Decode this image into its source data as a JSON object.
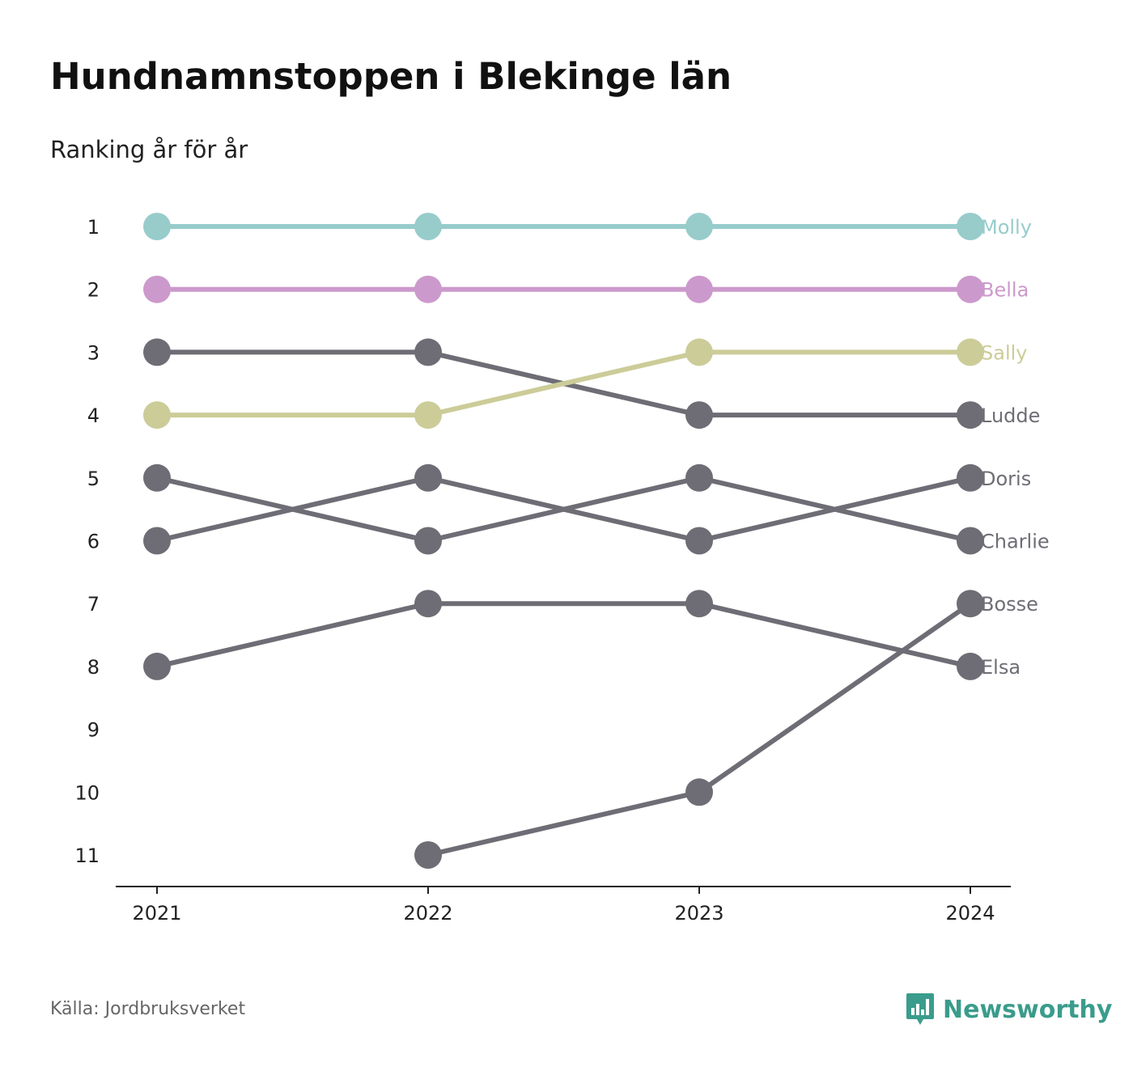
{
  "title": "Hundnamnstoppen i Blekinge län",
  "subtitle": "Ranking år för år",
  "source": "Källa: Jordbruksverket",
  "brand": "Newsworthy",
  "brand_icon": "bar-chart-speech-bubble-icon",
  "colors": {
    "highlight": "#3a9c8c",
    "default_series": "#6e6d75"
  },
  "chart_data": {
    "type": "line",
    "subtype": "bump",
    "x": [
      "2021",
      "2022",
      "2023",
      "2024"
    ],
    "y_ticks": [
      1,
      2,
      3,
      4,
      5,
      6,
      7,
      8,
      9,
      10,
      11
    ],
    "ylim": [
      1,
      11
    ],
    "y_inverted": true,
    "grid": false,
    "legend": "end-labels-right",
    "series": [
      {
        "name": "Molly",
        "values": [
          1,
          1,
          1,
          1
        ],
        "color": "#97cccb"
      },
      {
        "name": "Bella",
        "values": [
          2,
          2,
          2,
          2
        ],
        "color": "#cc99cc"
      },
      {
        "name": "Sally",
        "values": [
          4,
          4,
          3,
          3
        ],
        "color": "#cccc99"
      },
      {
        "name": "Ludde",
        "values": [
          3,
          3,
          4,
          4
        ],
        "color": "#6e6d75"
      },
      {
        "name": "Doris",
        "values": [
          6,
          5,
          6,
          5
        ],
        "color": "#6e6d75"
      },
      {
        "name": "Charlie",
        "values": [
          5,
          6,
          5,
          6
        ],
        "color": "#6e6d75"
      },
      {
        "name": "Bosse",
        "values": [
          null,
          11,
          10,
          7
        ],
        "color": "#6e6d75"
      },
      {
        "name": "Elsa",
        "values": [
          8,
          7,
          7,
          8
        ],
        "color": "#6e6d75"
      }
    ]
  }
}
